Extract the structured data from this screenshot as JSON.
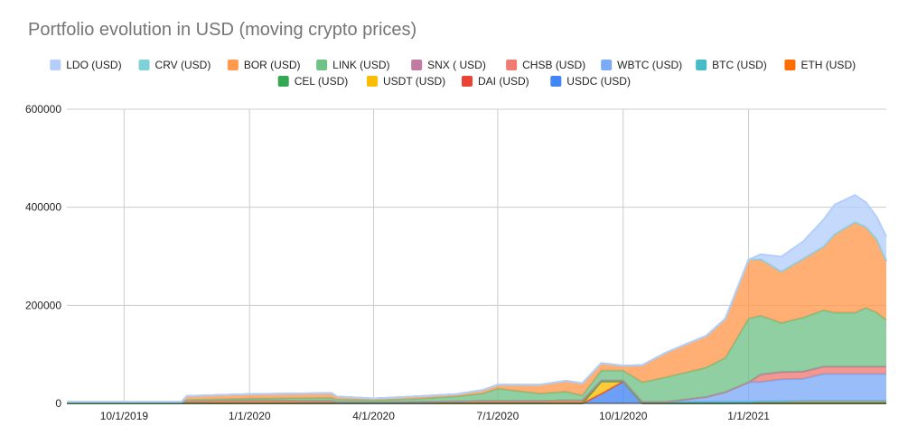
{
  "chart_data": {
    "type": "area",
    "stacked": true,
    "title": "Portfolio evolution in USD (moving crypto prices)",
    "xlabel": "",
    "ylabel": "",
    "legend_position": "top",
    "grid": true,
    "x_ticks": [
      "10/1/2019",
      "1/1/2020",
      "4/1/2020",
      "7/1/2020",
      "10/1/2020",
      "1/1/2021"
    ],
    "xlim": [
      "2019-08-20",
      "2021-04-12"
    ],
    "y_ticks": [
      0,
      200000,
      400000,
      600000
    ],
    "y_tick_labels": [
      "0",
      "200000",
      "400000",
      "600000"
    ],
    "ylim": [
      0,
      600000
    ],
    "x": [
      "2019-08-20",
      "2019-10-01",
      "2019-11-12",
      "2019-11-16",
      "2020-01-01",
      "2020-03-01",
      "2020-03-05",
      "2020-04-01",
      "2020-05-01",
      "2020-06-01",
      "2020-06-20",
      "2020-07-01",
      "2020-08-01",
      "2020-08-20",
      "2020-09-01",
      "2020-09-15",
      "2020-10-01",
      "2020-10-15",
      "2020-11-01",
      "2020-12-01",
      "2020-12-15",
      "2021-01-01",
      "2021-01-10",
      "2021-01-25",
      "2021-02-10",
      "2021-02-25",
      "2021-03-05",
      "2021-03-20",
      "2021-03-28",
      "2021-04-05",
      "2021-04-12"
    ],
    "series": [
      {
        "name": "USDC (USD)",
        "color": "#4285f4",
        "values": [
          0,
          0,
          0,
          0,
          0,
          0,
          0,
          0,
          0,
          0,
          0,
          0,
          0,
          0,
          0,
          20000,
          45000,
          0,
          0,
          0,
          0,
          0,
          0,
          0,
          0,
          0,
          0,
          0,
          0,
          0,
          0
        ]
      },
      {
        "name": "DAI (USD)",
        "color": "#ea4335",
        "values": [
          0,
          0,
          0,
          0,
          0,
          0,
          0,
          0,
          0,
          0,
          0,
          0,
          0,
          0,
          0,
          0,
          0,
          0,
          0,
          0,
          0,
          0,
          0,
          0,
          0,
          0,
          0,
          0,
          0,
          0,
          0
        ]
      },
      {
        "name": "USDT (USD)",
        "color": "#fbbc04",
        "values": [
          0,
          0,
          0,
          0,
          0,
          0,
          0,
          0,
          0,
          0,
          0,
          0,
          0,
          0,
          0,
          25000,
          0,
          0,
          0,
          0,
          0,
          0,
          0,
          0,
          0,
          0,
          0,
          0,
          0,
          0,
          0
        ]
      },
      {
        "name": "CEL (USD)",
        "color": "#34a853",
        "values": [
          0,
          0,
          0,
          0,
          0,
          0,
          0,
          0,
          0,
          0,
          0,
          0,
          0,
          0,
          0,
          0,
          0,
          0,
          0,
          0,
          0,
          0,
          0,
          0,
          0,
          0,
          0,
          0,
          0,
          0,
          0
        ]
      },
      {
        "name": "ETH (USD)",
        "color": "#ff6d01",
        "values": [
          2000,
          2000,
          2000,
          5000,
          6000,
          5000,
          3000,
          2000,
          3000,
          4000,
          5000,
          5000,
          5000,
          6000,
          6000,
          2000,
          2000,
          3000,
          3000,
          3000,
          3000,
          3000,
          4000,
          4000,
          5000,
          5000,
          5000,
          5000,
          5000,
          5000,
          5000
        ]
      },
      {
        "name": "BTC (USD)",
        "color": "#46bdc6",
        "values": [
          0,
          0,
          0,
          0,
          0,
          0,
          0,
          0,
          0,
          0,
          0,
          0,
          0,
          0,
          0,
          0,
          0,
          0,
          0,
          0,
          0,
          0,
          0,
          0,
          0,
          0,
          0,
          0,
          0,
          0,
          0
        ]
      },
      {
        "name": "WBTC (USD)",
        "color": "#7baaf7",
        "values": [
          0,
          0,
          0,
          0,
          0,
          0,
          0,
          0,
          0,
          0,
          0,
          0,
          0,
          0,
          0,
          0,
          0,
          0,
          0,
          10000,
          20000,
          40000,
          40000,
          45000,
          45000,
          55000,
          55000,
          55000,
          55000,
          55000,
          55000
        ]
      },
      {
        "name": "CHSB (USD)",
        "color": "#f07b72",
        "values": [
          0,
          0,
          0,
          0,
          0,
          0,
          0,
          0,
          0,
          0,
          0,
          0,
          0,
          0,
          0,
          0,
          0,
          0,
          0,
          0,
          0,
          0,
          15000,
          15000,
          15000,
          15000,
          15000,
          15000,
          15000,
          15000,
          15000
        ]
      },
      {
        "name": "SNX ( USD)",
        "color": "#c27ba0",
        "values": [
          0,
          0,
          0,
          0,
          0,
          0,
          0,
          0,
          0,
          0,
          0,
          0,
          0,
          0,
          0,
          0,
          0,
          0,
          0,
          0,
          0,
          0,
          0,
          0,
          0,
          0,
          0,
          0,
          0,
          0,
          0
        ]
      },
      {
        "name": "LINK (USD)",
        "color": "#71c287",
        "values": [
          1000,
          1000,
          1000,
          2000,
          4000,
          6000,
          5000,
          4000,
          6000,
          10000,
          15000,
          25000,
          15000,
          18000,
          10000,
          20000,
          20000,
          40000,
          50000,
          60000,
          70000,
          130000,
          120000,
          100000,
          110000,
          115000,
          110000,
          110000,
          120000,
          110000,
          95000
        ]
      },
      {
        "name": "BOR (USD)",
        "color": "#ff994d",
        "values": [
          0,
          0,
          0,
          8000,
          9000,
          10000,
          6000,
          4000,
          5000,
          5000,
          7000,
          8000,
          18000,
          22000,
          25000,
          15000,
          10000,
          35000,
          50000,
          65000,
          80000,
          120000,
          115000,
          105000,
          120000,
          130000,
          160000,
          185000,
          165000,
          150000,
          120000
        ]
      },
      {
        "name": "CRV (USD)",
        "color": "#7ed1d7",
        "values": [
          0,
          0,
          0,
          0,
          0,
          0,
          0,
          0,
          0,
          0,
          0,
          0,
          0,
          0,
          0,
          0,
          0,
          0,
          0,
          0,
          0,
          0,
          0,
          0,
          0,
          0,
          0,
          0,
          0,
          0,
          0
        ]
      },
      {
        "name": "LDO (USD)",
        "color": "#b3cefb",
        "values": [
          0,
          0,
          0,
          0,
          0,
          0,
          0,
          0,
          0,
          0,
          0,
          0,
          0,
          0,
          0,
          0,
          0,
          0,
          0,
          0,
          0,
          0,
          10000,
          30000,
          35000,
          55000,
          60000,
          55000,
          50000,
          45000,
          50000
        ]
      }
    ]
  }
}
